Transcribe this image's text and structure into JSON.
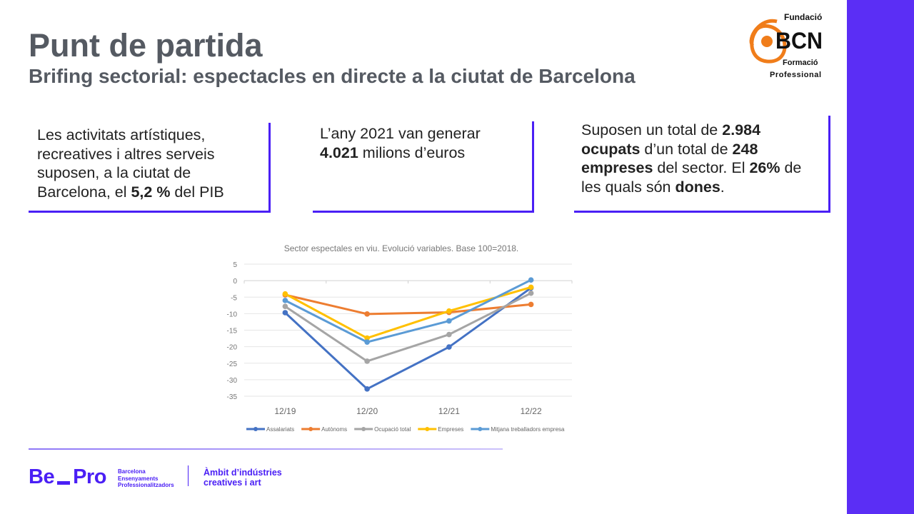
{
  "header": {
    "title": "Punt de partida",
    "subtitle": "Brifing sectorial: espectacles en directe a la ciutat de Barcelona"
  },
  "logo": {
    "line1": "Fundació",
    "line2": "BCN",
    "line3": "Formació",
    "line4": "Professional",
    "accent": "#f07d1a"
  },
  "cards": [
    {
      "segments": [
        {
          "text": "Les activitats artístiques, recreatives i altres serveis suposen, a la ciutat de Barcelona, el ",
          "bold": false
        },
        {
          "text": "5,2 %",
          "bold": true
        },
        {
          "text": " del PIB",
          "bold": false
        }
      ]
    },
    {
      "segments": [
        {
          "text": "L’any 2021 van generar ",
          "bold": false
        },
        {
          "text": "4.021",
          "bold": true
        },
        {
          "text": " milions d’euros",
          "bold": false
        }
      ]
    },
    {
      "segments": [
        {
          "text": "Suposen un total de ",
          "bold": false
        },
        {
          "text": "2.984 ocupats",
          "bold": true
        },
        {
          "text": " d’un total de ",
          "bold": false
        },
        {
          "text": "248 empreses",
          "bold": true
        },
        {
          "text": " del sector. El ",
          "bold": false
        },
        {
          "text": "26%",
          "bold": true
        },
        {
          "text": " de les quals són ",
          "bold": false
        },
        {
          "text": "dones",
          "bold": true
        },
        {
          "text": ".",
          "bold": false
        }
      ]
    }
  ],
  "chart_data": {
    "type": "line",
    "title": "Sector espectales en viu. Evolució variables. Base 100=2018.",
    "categories": [
      "12/19",
      "12/20",
      "12/21",
      "12/22"
    ],
    "ylim": [
      -35,
      5
    ],
    "yticks": [
      5,
      0,
      -5,
      -10,
      -15,
      -20,
      -25,
      -30,
      -35
    ],
    "grid": true,
    "legend": "bottom",
    "series": [
      {
        "name": "Assalariats",
        "color": "#4472c4",
        "values": [
          -9.7,
          -32.8,
          -20.1,
          -2.2
        ]
      },
      {
        "name": "Autònoms",
        "color": "#ed7d31",
        "values": [
          -4.3,
          -10.1,
          -9.6,
          -7.2
        ]
      },
      {
        "name": "Ocupació total",
        "color": "#a5a5a5",
        "values": [
          -7.8,
          -24.4,
          -16.3,
          -3.8
        ]
      },
      {
        "name": "Empreses",
        "color": "#ffc000",
        "values": [
          -4.0,
          -17.4,
          -9.2,
          -2.0
        ]
      },
      {
        "name": "Mitjana treballadors empresa",
        "color": "#5b9bd5",
        "values": [
          -6.0,
          -18.6,
          -12.2,
          0.2
        ]
      }
    ]
  },
  "footer": {
    "brand": "Be_Pro",
    "brand_lines": [
      "Barcelona",
      "Ensenyaments",
      "Professionalitzadors"
    ],
    "ambit_lines": [
      "Àmbit d’indústries",
      "creatives i art"
    ],
    "accent": "#4a1ff5"
  }
}
